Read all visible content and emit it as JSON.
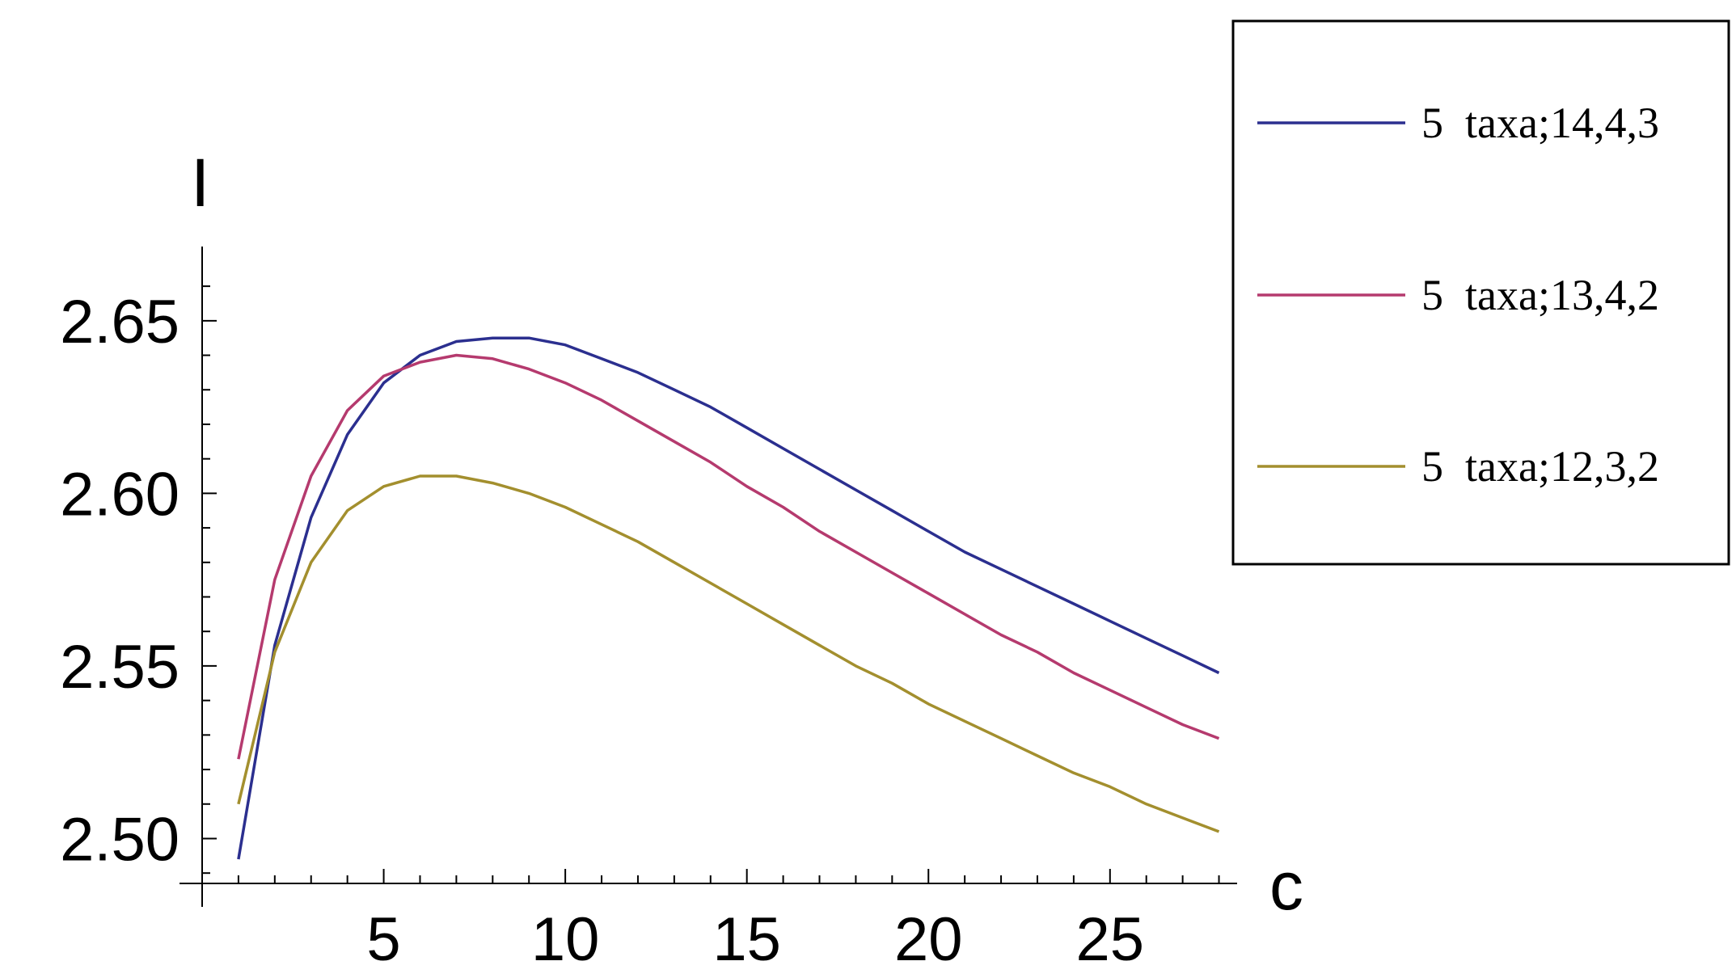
{
  "chart_data": {
    "type": "line",
    "xlabel": "c",
    "ylabel": "I",
    "xlim": [
      0,
      28.5
    ],
    "ylim": [
      2.487,
      2.6715
    ],
    "xticks": [
      5,
      10,
      15,
      20,
      25
    ],
    "xtick_labels": [
      "5",
      "10",
      "15",
      "20",
      "25"
    ],
    "yticks": [
      2.5,
      2.55,
      2.6,
      2.65
    ],
    "ytick_labels": [
      "2.50",
      "2.55",
      "2.60",
      "2.65"
    ],
    "grid": false,
    "legend_position": "top-right",
    "x": [
      1,
      2,
      3,
      4,
      5,
      6,
      7,
      8,
      9,
      10,
      11,
      12,
      13,
      14,
      15,
      16,
      17,
      18,
      19,
      20,
      21,
      22,
      23,
      24,
      25,
      26,
      27,
      28
    ],
    "series": [
      {
        "name": "5  taxa;14,4,3",
        "color": "#2b2f8f",
        "values": [
          2.494,
          2.556,
          2.593,
          2.617,
          2.632,
          2.64,
          2.644,
          2.645,
          2.645,
          2.643,
          2.639,
          2.635,
          2.63,
          2.625,
          2.619,
          2.613,
          2.607,
          2.601,
          2.595,
          2.589,
          2.583,
          2.578,
          2.573,
          2.568,
          2.563,
          2.558,
          2.553,
          2.548
        ]
      },
      {
        "name": "5  taxa;13,4,2",
        "color": "#b53a6e",
        "values": [
          2.523,
          2.575,
          2.605,
          2.624,
          2.634,
          2.638,
          2.64,
          2.639,
          2.636,
          2.632,
          2.627,
          2.621,
          2.615,
          2.609,
          2.602,
          2.596,
          2.589,
          2.583,
          2.577,
          2.571,
          2.565,
          2.559,
          2.554,
          2.548,
          2.543,
          2.538,
          2.533,
          2.529
        ]
      },
      {
        "name": "5  taxa;12,3,2",
        "color": "#a38f2e",
        "values": [
          2.51,
          2.554,
          2.58,
          2.595,
          2.602,
          2.605,
          2.605,
          2.603,
          2.6,
          2.596,
          2.591,
          2.586,
          2.58,
          2.574,
          2.568,
          2.562,
          2.556,
          2.55,
          2.545,
          2.539,
          2.534,
          2.529,
          2.524,
          2.519,
          2.515,
          2.51,
          2.506,
          2.502
        ]
      }
    ]
  }
}
